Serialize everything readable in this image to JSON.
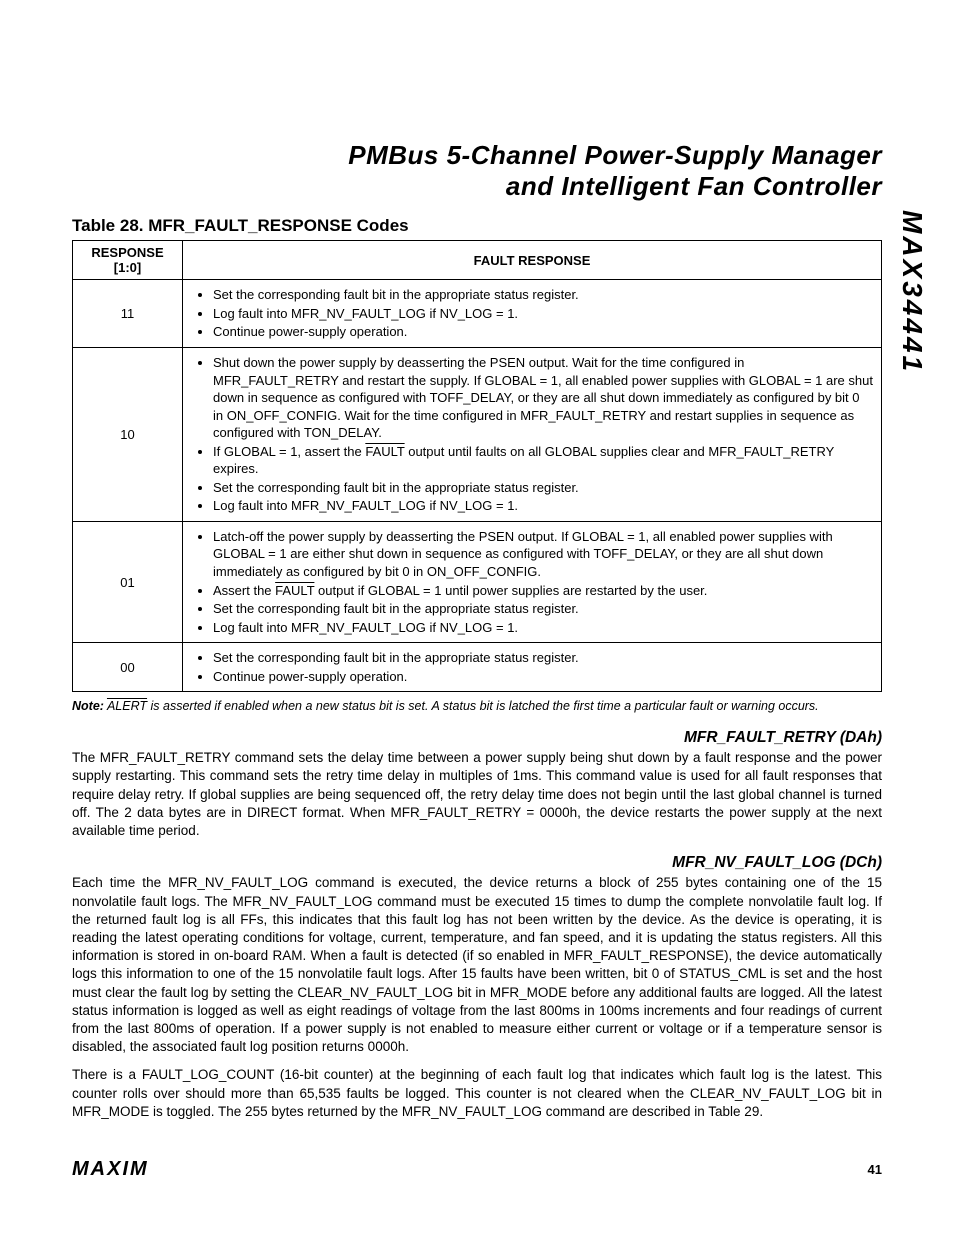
{
  "header": {
    "line1": "PMBus 5-Channel Power-Supply Manager",
    "line2": "and Intelligent Fan Controller"
  },
  "part_number": "MAX34441",
  "table": {
    "caption": "Table 28. MFR_FAULT_RESPONSE Codes",
    "columns": {
      "response_header_l1": "RESPONSE",
      "response_header_l2": "[1:0]",
      "fault_header": "FAULT RESPONSE"
    },
    "rows": [
      {
        "code": "11",
        "items_html": [
          "Set the corresponding fault bit in the appropriate status register.",
          "Log fault into MFR_NV_FAULT_LOG if NV_LOG = 1.",
          "Continue power-supply operation."
        ]
      },
      {
        "code": "10",
        "items_html": [
          "Shut down the power supply by deasserting the PSEN output. Wait for the time configured in MFR_FAULT_RETRY and restart the supply. If GLOBAL = 1, all enabled power supplies with GLOBAL = 1 are shut down in sequence as configured with TOFF_DELAY, or they are all shut down immediately as configured by bit 0 in ON_OFF_CONFIG. Wait for the time configured in MFR_FAULT_RETRY and restart supplies in sequence as configured with TON_DELAY.",
          "If GLOBAL = 1, assert the <span class=\"overline\">FAULT</span> output until faults on all GLOBAL supplies clear and MFR_FAULT_RETRY expires.",
          "Set the corresponding fault bit in the appropriate status register.",
          "Log fault into MFR_NV_FAULT_LOG if NV_LOG = 1."
        ]
      },
      {
        "code": "01",
        "items_html": [
          "Latch-off the power supply by deasserting the PSEN output. If GLOBAL = 1, all enabled power supplies with GLOBAL = 1 are either shut down in sequence as configured with TOFF_DELAY, or they are all shut down immediately as configured by bit 0 in ON_OFF_CONFIG.",
          "Assert the <span class=\"overline\">FAULT</span> output if GLOBAL = 1 until power supplies are restarted by the user.",
          "Set the corresponding fault bit in the appropriate status register.",
          "Log fault into MFR_NV_FAULT_LOG if NV_LOG = 1."
        ]
      },
      {
        "code": "00",
        "items_html": [
          "Set the corresponding fault bit in the appropriate status register.",
          "Continue power-supply operation."
        ]
      }
    ],
    "note_label": "Note:",
    "note_html": "<span class=\"overline\">ALERT</span> is asserted if enabled when a new status bit is set. A status bit is latched the first time a particular fault or warning occurs."
  },
  "sections": [
    {
      "heading": "MFR_FAULT_RETRY (DAh)",
      "paragraphs": [
        "The MFR_FAULT_RETRY command sets the delay time between a power supply being shut down by a fault response and the power supply restarting. This command sets the retry time delay in multiples of 1ms. This command value is used for all fault responses that require delay retry. If global supplies are being sequenced off, the retry delay time does not begin until the last global channel is turned off. The 2 data bytes are in DIRECT format. When MFR_FAULT_RETRY = 0000h, the device restarts the power supply at the next available time period."
      ]
    },
    {
      "heading": "MFR_NV_FAULT_LOG (DCh)",
      "paragraphs": [
        "Each time the MFR_NV_FAULT_LOG command is executed, the device returns a block of 255 bytes containing one of the 15 nonvolatile fault logs. The MFR_NV_FAULT_LOG command must be executed 15 times to dump the complete nonvolatile fault log. If the returned fault log is all FFs, this indicates that this fault log has not been written by the device. As the device is operating, it is reading the latest operating conditions for voltage, current, temperature, and fan speed, and it is updating the status registers. All this information is stored in on-board RAM. When a fault is detected (if so enabled in MFR_FAULT_RESPONSE), the device automatically logs this information to one of the 15 nonvolatile fault logs. After 15 faults have been written, bit 0 of STATUS_CML is set and the host must clear the fault log by setting the CLEAR_NV_FAULT_LOG bit in MFR_MODE before any additional faults are logged. All the latest status information is logged as well as eight readings of voltage from the last 800ms in 100ms increments and four readings of current from the last 800ms of operation. If a power supply is not enabled to measure either current or voltage or if a temperature sensor is disabled, the associated fault log position returns 0000h.",
        "There is a FAULT_LOG_COUNT (16-bit counter) at the beginning of each fault log that indicates which fault log is the latest. This counter rolls over should more than 65,535 faults be logged. This counter is not cleared when the CLEAR_NV_FAULT_LOG bit in MFR_MODE is toggled. The 255 bytes returned by the MFR_NV_FAULT_LOG command are described in Table 29."
      ]
    }
  ],
  "footer": {
    "logo": "MAXIM",
    "page": "41"
  }
}
